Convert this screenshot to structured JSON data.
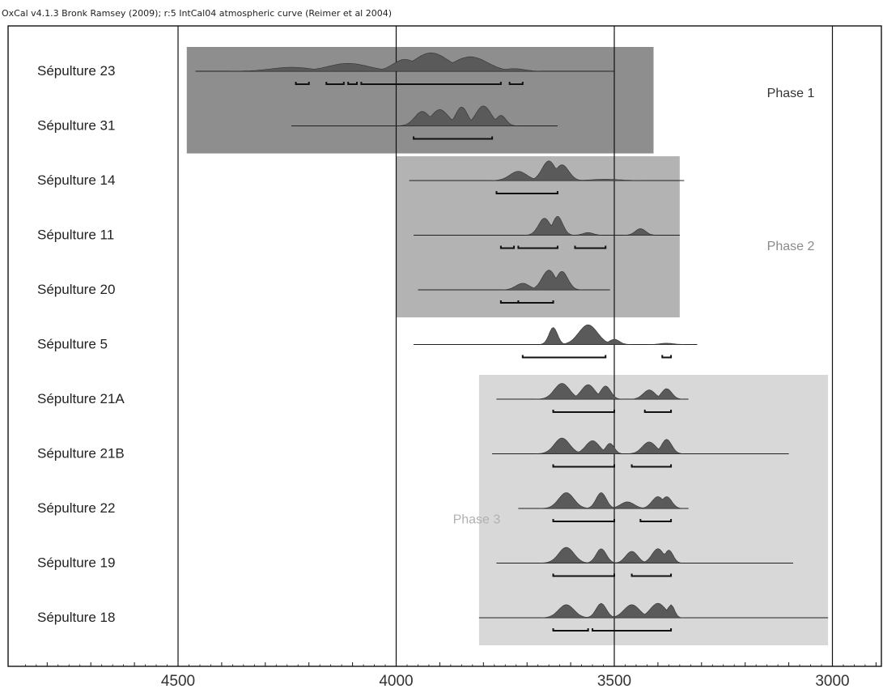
{
  "header": "OxCal v4.1.3 Bronk Ramsey (2009); r:5 IntCal04 atmospheric curve (Reimer et al 2004)",
  "colors": {
    "phase1_fill": "#8e8e8e",
    "phase2_fill": "#b3b3b3",
    "phase3_fill": "#d8d8d8",
    "distribution_fill": "#5a5a5a",
    "phase1_label": "#333333",
    "phase2_label": "#8a8a8a",
    "phase3_label": "#b0b0b0"
  },
  "chart_data": {
    "type": "range",
    "title": "",
    "xlabel": "",
    "ylabel": "",
    "x_axis": {
      "reversed": true,
      "range": [
        4890,
        2900
      ],
      "ticks": [
        4500,
        4000,
        3500,
        3000
      ],
      "minor_step": 100
    },
    "grid": "vertical lines at major ticks",
    "phases": [
      {
        "label": "Phase 1",
        "from": 4480,
        "to": 3410,
        "rows": [
          0,
          1
        ],
        "shade": "phase1_fill",
        "label_color": "phase1_label",
        "label_x": 3150,
        "label_row": 0.4
      },
      {
        "label": "Phase 2",
        "from": 4000,
        "to": 3350,
        "rows": [
          2,
          4
        ],
        "shade": "phase2_fill",
        "label_color": "phase2_label",
        "label_x": 3150,
        "label_row": 3.2
      },
      {
        "label": "Phase 3",
        "from": 3810,
        "to": 3010,
        "rows": [
          6,
          10
        ],
        "shade": "phase3_fill",
        "label_color": "phase3_label",
        "label_x": 3870,
        "label_row": 8.2
      }
    ],
    "samples": [
      {
        "name": "Sépulture 23",
        "span": [
          4460,
          3500
        ],
        "peaks": [
          [
            4240,
            15,
            120
          ],
          [
            4110,
            30,
            120
          ],
          [
            3980,
            45,
            70
          ],
          [
            3920,
            70,
            100
          ],
          [
            3830,
            55,
            100
          ],
          [
            3730,
            10,
            60
          ]
        ],
        "ranges": [
          [
            4230,
            4200
          ],
          [
            4160,
            4120
          ],
          [
            4110,
            4090
          ],
          [
            4080,
            3760
          ],
          [
            3740,
            3710
          ]
        ]
      },
      {
        "name": "Sépulture 31",
        "span": [
          4240,
          3630
        ],
        "peaks": [
          [
            3940,
            55,
            45
          ],
          [
            3900,
            62,
            50
          ],
          [
            3850,
            72,
            35
          ],
          [
            3800,
            76,
            45
          ],
          [
            3760,
            40,
            30
          ]
        ],
        "ranges": [
          [
            3960,
            3780
          ]
        ]
      },
      {
        "name": "Sépulture 14",
        "span": [
          3970,
          3340
        ],
        "peaks": [
          [
            3720,
            35,
            50
          ],
          [
            3650,
            75,
            40
          ],
          [
            3620,
            60,
            40
          ],
          [
            3520,
            5,
            80
          ]
        ],
        "ranges": [
          [
            3770,
            3630
          ]
        ]
      },
      {
        "name": "Sépulture 11",
        "span": [
          3960,
          3350
        ],
        "peaks": [
          [
            3660,
            65,
            35
          ],
          [
            3630,
            72,
            30
          ],
          [
            3560,
            10,
            30
          ],
          [
            3440,
            25,
            30
          ]
        ],
        "ranges": [
          [
            3760,
            3730
          ],
          [
            3720,
            3630
          ],
          [
            3590,
            3520
          ]
        ]
      },
      {
        "name": "Sépulture 20",
        "span": [
          3950,
          3510
        ],
        "peaks": [
          [
            3710,
            25,
            40
          ],
          [
            3650,
            75,
            40
          ],
          [
            3620,
            70,
            35
          ]
        ],
        "ranges": [
          [
            3760,
            3720
          ],
          [
            3720,
            3640
          ]
        ]
      },
      {
        "name": "Sépulture 5",
        "span": [
          3960,
          3310
        ],
        "peaks": [
          [
            3640,
            65,
            25
          ],
          [
            3560,
            75,
            55
          ],
          [
            3500,
            20,
            30
          ],
          [
            3380,
            5,
            40
          ]
        ],
        "ranges": [
          [
            3710,
            3520
          ],
          [
            3390,
            3370
          ]
        ]
      },
      {
        "name": "Sépulture 21A",
        "span": [
          3770,
          3330
        ],
        "peaks": [
          [
            3620,
            60,
            45
          ],
          [
            3560,
            55,
            40
          ],
          [
            3520,
            50,
            30
          ],
          [
            3420,
            35,
            35
          ],
          [
            3380,
            40,
            30
          ]
        ],
        "ranges": [
          [
            3640,
            3500
          ],
          [
            3430,
            3370
          ]
        ]
      },
      {
        "name": "Sépulture 21B",
        "span": [
          3780,
          3100
        ],
        "peaks": [
          [
            3620,
            60,
            45
          ],
          [
            3550,
            50,
            40
          ],
          [
            3510,
            40,
            25
          ],
          [
            3420,
            45,
            40
          ],
          [
            3380,
            55,
            30
          ]
        ],
        "ranges": [
          [
            3640,
            3500
          ],
          [
            3460,
            3370
          ]
        ]
      },
      {
        "name": "Sépulture 22",
        "span": [
          3720,
          3330
        ],
        "peaks": [
          [
            3610,
            60,
            45
          ],
          [
            3530,
            60,
            30
          ],
          [
            3470,
            25,
            40
          ],
          [
            3400,
            45,
            35
          ],
          [
            3380,
            45,
            30
          ]
        ],
        "ranges": [
          [
            3640,
            3500
          ],
          [
            3440,
            3370
          ]
        ]
      },
      {
        "name": "Sépulture 19",
        "span": [
          3770,
          3090
        ],
        "peaks": [
          [
            3610,
            60,
            45
          ],
          [
            3530,
            55,
            30
          ],
          [
            3460,
            45,
            35
          ],
          [
            3400,
            55,
            35
          ],
          [
            3375,
            50,
            25
          ]
        ],
        "ranges": [
          [
            3640,
            3500
          ],
          [
            3460,
            3370
          ]
        ]
      },
      {
        "name": "Sépulture 18",
        "span": [
          3810,
          3010
        ],
        "peaks": [
          [
            3610,
            50,
            45
          ],
          [
            3530,
            55,
            30
          ],
          [
            3460,
            50,
            45
          ],
          [
            3400,
            55,
            45
          ],
          [
            3370,
            50,
            20
          ]
        ],
        "ranges": [
          [
            3640,
            3560
          ],
          [
            3550,
            3370
          ]
        ]
      }
    ]
  }
}
